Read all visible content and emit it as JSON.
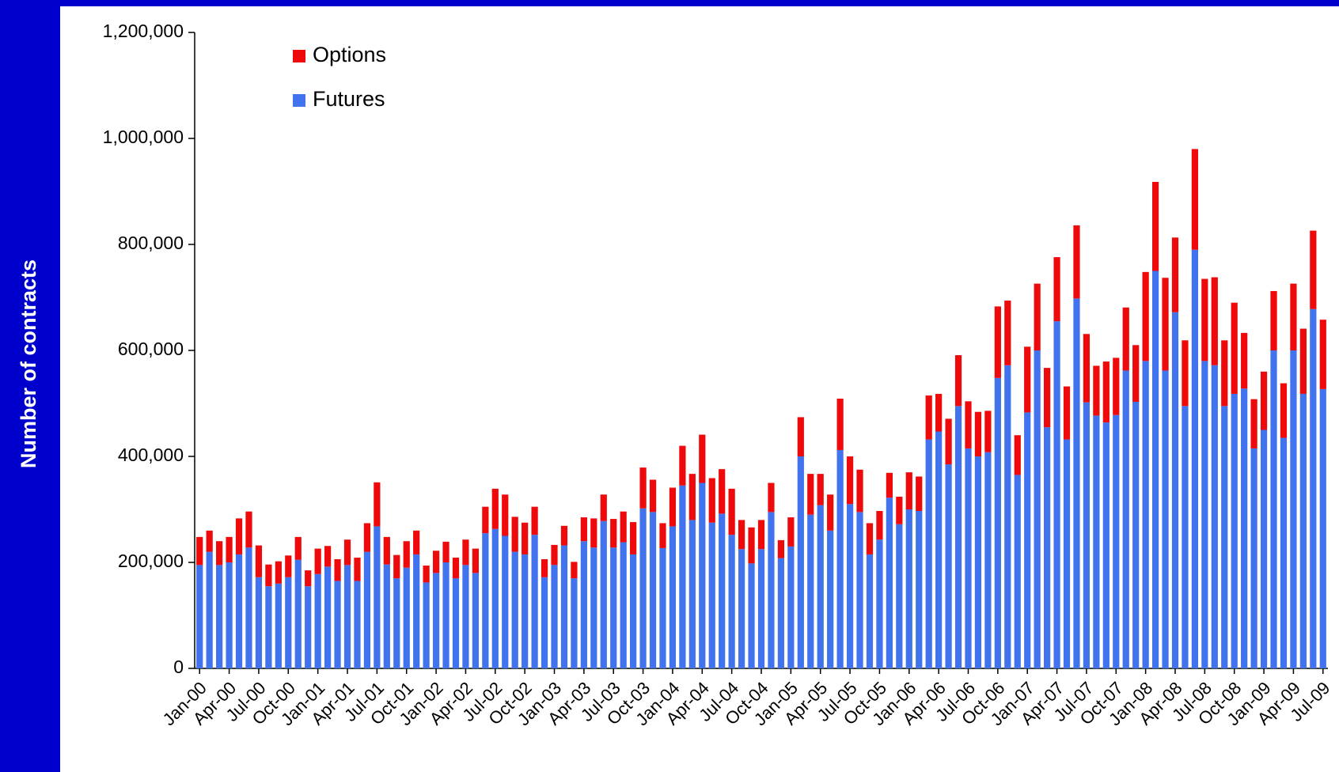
{
  "chart_data": {
    "type": "stacked_bar",
    "y_label": "Number of contracts",
    "categories": [
      "Jan-00",
      null,
      null,
      "Apr-00",
      null,
      null,
      "Jul-00",
      null,
      null,
      "Oct-00",
      null,
      null,
      "Jan-01",
      null,
      null,
      "Apr-01",
      null,
      null,
      "Jul-01",
      null,
      null,
      "Oct-01",
      null,
      null,
      "Jan-02",
      null,
      null,
      "Apr-02",
      null,
      null,
      "Jul-02",
      null,
      null,
      "Oct-02",
      null,
      null,
      "Jan-03",
      null,
      null,
      "Apr-03",
      null,
      null,
      "Jul-03",
      null,
      null,
      "Oct-03",
      null,
      null,
      "Jan-04",
      null,
      null,
      "Apr-04",
      null,
      null,
      "Jul-04",
      null,
      null,
      "Oct-04",
      null,
      null,
      "Jan-05",
      null,
      null,
      "Apr-05",
      null,
      null,
      "Jul-05",
      null,
      null,
      "Oct-05",
      null,
      null,
      "Jan-06",
      null,
      null,
      "Apr-06",
      null,
      null,
      "Jul-06",
      null,
      null,
      "Oct-06",
      null,
      null,
      "Jan-07",
      null,
      null,
      "Apr-07",
      null,
      null,
      "Jul-07",
      null,
      null,
      "Oct-07",
      null,
      null,
      "Jan-08",
      null,
      null,
      "Apr-08",
      null,
      null,
      "Jul-08",
      null,
      null,
      "Oct-08",
      null,
      null,
      "Jan-09",
      null,
      null,
      "Apr-09",
      null,
      null,
      "Jul-09"
    ],
    "series": [
      {
        "name": "Futures",
        "color": "#4173ee",
        "values": [
          195000,
          220000,
          195000,
          200000,
          215000,
          228000,
          172000,
          155000,
          160000,
          172000,
          205000,
          155000,
          178000,
          192000,
          165000,
          195000,
          165000,
          220000,
          268000,
          196000,
          170000,
          190000,
          215000,
          162000,
          180000,
          200000,
          170000,
          195000,
          180000,
          255000,
          263000,
          250000,
          220000,
          215000,
          252000,
          172000,
          195000,
          232000,
          170000,
          240000,
          228000,
          278000,
          228000,
          238000,
          215000,
          302000,
          295000,
          227000,
          268000,
          345000,
          280000,
          350000,
          275000,
          292000,
          252000,
          225000,
          198000,
          225000,
          295000,
          208000,
          230000,
          400000,
          290000,
          308000,
          260000,
          412000,
          310000,
          295000,
          215000,
          243000,
          322000,
          272000,
          300000,
          297000,
          432000,
          447000,
          385000,
          495000,
          415000,
          400000,
          408000,
          548000,
          572000,
          365000,
          483000,
          600000,
          455000,
          655000,
          432000,
          698000,
          502000,
          477000,
          464000,
          478000,
          562000,
          503000,
          580000,
          750000,
          562000,
          672000,
          495000,
          790000,
          580000,
          572000,
          495000,
          518000,
          528000,
          415000,
          450000,
          600000,
          435000,
          600000,
          518000,
          678000,
          527000
        ]
      },
      {
        "name": "Options",
        "color": "#ee0a0a",
        "values": [
          53000,
          40000,
          45000,
          48000,
          68000,
          68000,
          60000,
          41000,
          42000,
          41000,
          43000,
          30000,
          48000,
          39000,
          41000,
          48000,
          44000,
          54000,
          83000,
          52000,
          44000,
          50000,
          45000,
          32000,
          42000,
          39000,
          39000,
          48000,
          46000,
          50000,
          76000,
          78000,
          66000,
          60000,
          53000,
          34000,
          38000,
          37000,
          31000,
          45000,
          55000,
          50000,
          54000,
          58000,
          61000,
          77000,
          61000,
          47000,
          73000,
          75000,
          87000,
          91000,
          84000,
          84000,
          87000,
          55000,
          68000,
          55000,
          55000,
          34000,
          55000,
          74000,
          77000,
          59000,
          68000,
          97000,
          90000,
          80000,
          59000,
          54000,
          47000,
          52000,
          70000,
          65000,
          83000,
          71000,
          86000,
          96000,
          89000,
          84000,
          78000,
          135000,
          122000,
          75000,
          124000,
          126000,
          112000,
          121000,
          100000,
          138000,
          129000,
          94000,
          115000,
          108000,
          119000,
          107000,
          168000,
          168000,
          175000,
          141000,
          124000,
          190000,
          155000,
          166000,
          124000,
          172000,
          105000,
          93000,
          110000,
          112000,
          103000,
          126000,
          123000,
          148000,
          131000
        ]
      }
    ],
    "ylim": [
      0,
      1200000
    ],
    "yticks": [
      0,
      {
        "value": 200000,
        "label": "200,000"
      },
      {
        "value": 400000,
        "label": "400,000"
      },
      {
        "value": 600000,
        "label": "600,000"
      },
      {
        "value": 800000,
        "label": "800,000"
      },
      {
        "value": 1000000,
        "label": "1,000,000"
      },
      {
        "value": 1200000,
        "label": "1,200,000"
      }
    ],
    "legend": "upper left"
  }
}
